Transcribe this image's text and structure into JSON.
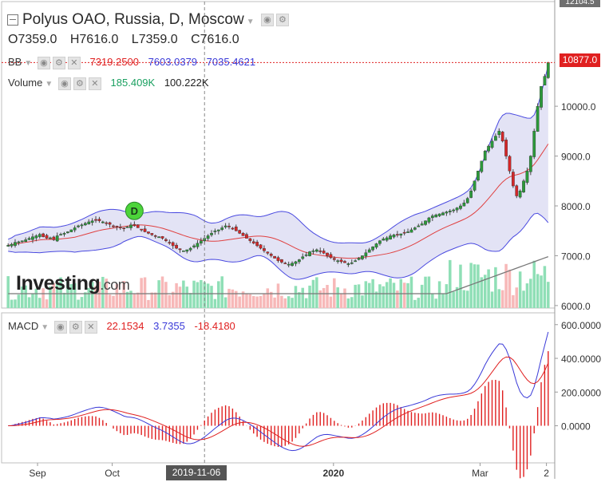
{
  "header": {
    "title": "Polyus OAO, Russia, D, Moscow",
    "ohlc": [
      {
        "k": "O",
        "v": "7359.0"
      },
      {
        "k": "H",
        "v": "7616.0"
      },
      {
        "k": "L",
        "v": "7359.0"
      },
      {
        "k": "C",
        "v": "7616.0"
      }
    ]
  },
  "legends": {
    "bb": {
      "name": "BB",
      "v1": "7319.2500",
      "v2": "7603.0379",
      "v3": "7035.4621"
    },
    "volume": {
      "name": "Volume",
      "v1": "185.409K",
      "v2": "100.222K"
    },
    "macd": {
      "name": "MACD",
      "v1": "22.1534",
      "v2": "3.7355",
      "v3": "-18.4180"
    }
  },
  "brand": {
    "logo_main": "Investing",
    "logo_suffix": ".com"
  },
  "colors": {
    "up": "#2b9a3a",
    "down": "#d62728",
    "bb_band": "#4a4ae0",
    "bb_mid": "#e04040",
    "bb_fill": "#dcdcf2",
    "vol_up": "#8fdfb6",
    "vol_down": "#f7b8b8",
    "macd_line": "#3a3ad8",
    "signal_line": "#e02020",
    "price_tag": "#e02020"
  },
  "price_tag": "10877.0",
  "top_tag": "12104.5",
  "crosshair_date": "2019-11-06",
  "chart_data": [
    {
      "type": "candlestick",
      "title": "Polyus OAO, Russia, D, Moscow",
      "y_ticks": [
        "10000.0",
        "9000.0",
        "8000.0",
        "7000.0",
        "6000.0"
      ],
      "x_ticks": [
        "Sep",
        "Oct",
        "2020",
        "Mar",
        "2"
      ],
      "ylim": [
        5950,
        12100
      ],
      "close": [
        7210,
        7230,
        7270,
        7280,
        7300,
        7320,
        7350,
        7380,
        7400,
        7430,
        7380,
        7350,
        7360,
        7320,
        7400,
        7430,
        7450,
        7480,
        7520,
        7560,
        7600,
        7620,
        7650,
        7680,
        7700,
        7720,
        7700,
        7680,
        7650,
        7630,
        7600,
        7580,
        7560,
        7540,
        7580,
        7620,
        7600,
        7560,
        7520,
        7480,
        7450,
        7420,
        7400,
        7380,
        7350,
        7300,
        7250,
        7200,
        7150,
        7120,
        7100,
        7120,
        7150,
        7200,
        7250,
        7300,
        7350,
        7400,
        7450,
        7500,
        7520,
        7560,
        7600,
        7580,
        7550,
        7500,
        7450,
        7400,
        7350,
        7300,
        7250,
        7200,
        7150,
        7100,
        7050,
        7000,
        6950,
        6900,
        6870,
        6850,
        6830,
        6850,
        6880,
        6920,
        6980,
        7020,
        7080,
        7100,
        7120,
        7080,
        7050,
        7000,
        6960,
        6920,
        6900,
        6880,
        6860,
        6840,
        6860,
        6900,
        6950,
        7000,
        7060,
        7120,
        7180,
        7240,
        7300,
        7340,
        7360,
        7400,
        7420,
        7430,
        7440,
        7460,
        7480,
        7520,
        7560,
        7600,
        7640,
        7700,
        7760,
        7800,
        7820,
        7840,
        7860,
        7880,
        7900,
        7920,
        7960,
        8000,
        8060,
        8150,
        8300,
        8500,
        8700,
        8900,
        9100,
        9200,
        9300,
        9400,
        9500,
        9300,
        9000,
        8700,
        8400,
        8200,
        8300,
        8500,
        8700,
        9000,
        9500,
        10000,
        10400,
        10600,
        10877
      ],
      "vol_base": 6000,
      "volume_color_rule": "up/down",
      "bb_period": 20,
      "bb_mult": 2
    },
    {
      "type": "line",
      "title": "MACD",
      "y_ticks": [
        "600.0000",
        "400.0000",
        "200.0000",
        "0.0000"
      ],
      "ylim": [
        -220,
        670
      ],
      "series": [
        {
          "name": "MACD",
          "color": "#3a3ad8"
        },
        {
          "name": "Signal",
          "color": "#e02020"
        }
      ],
      "macd_fast": 12,
      "macd_slow": 26,
      "macd_signal": 9
    }
  ]
}
